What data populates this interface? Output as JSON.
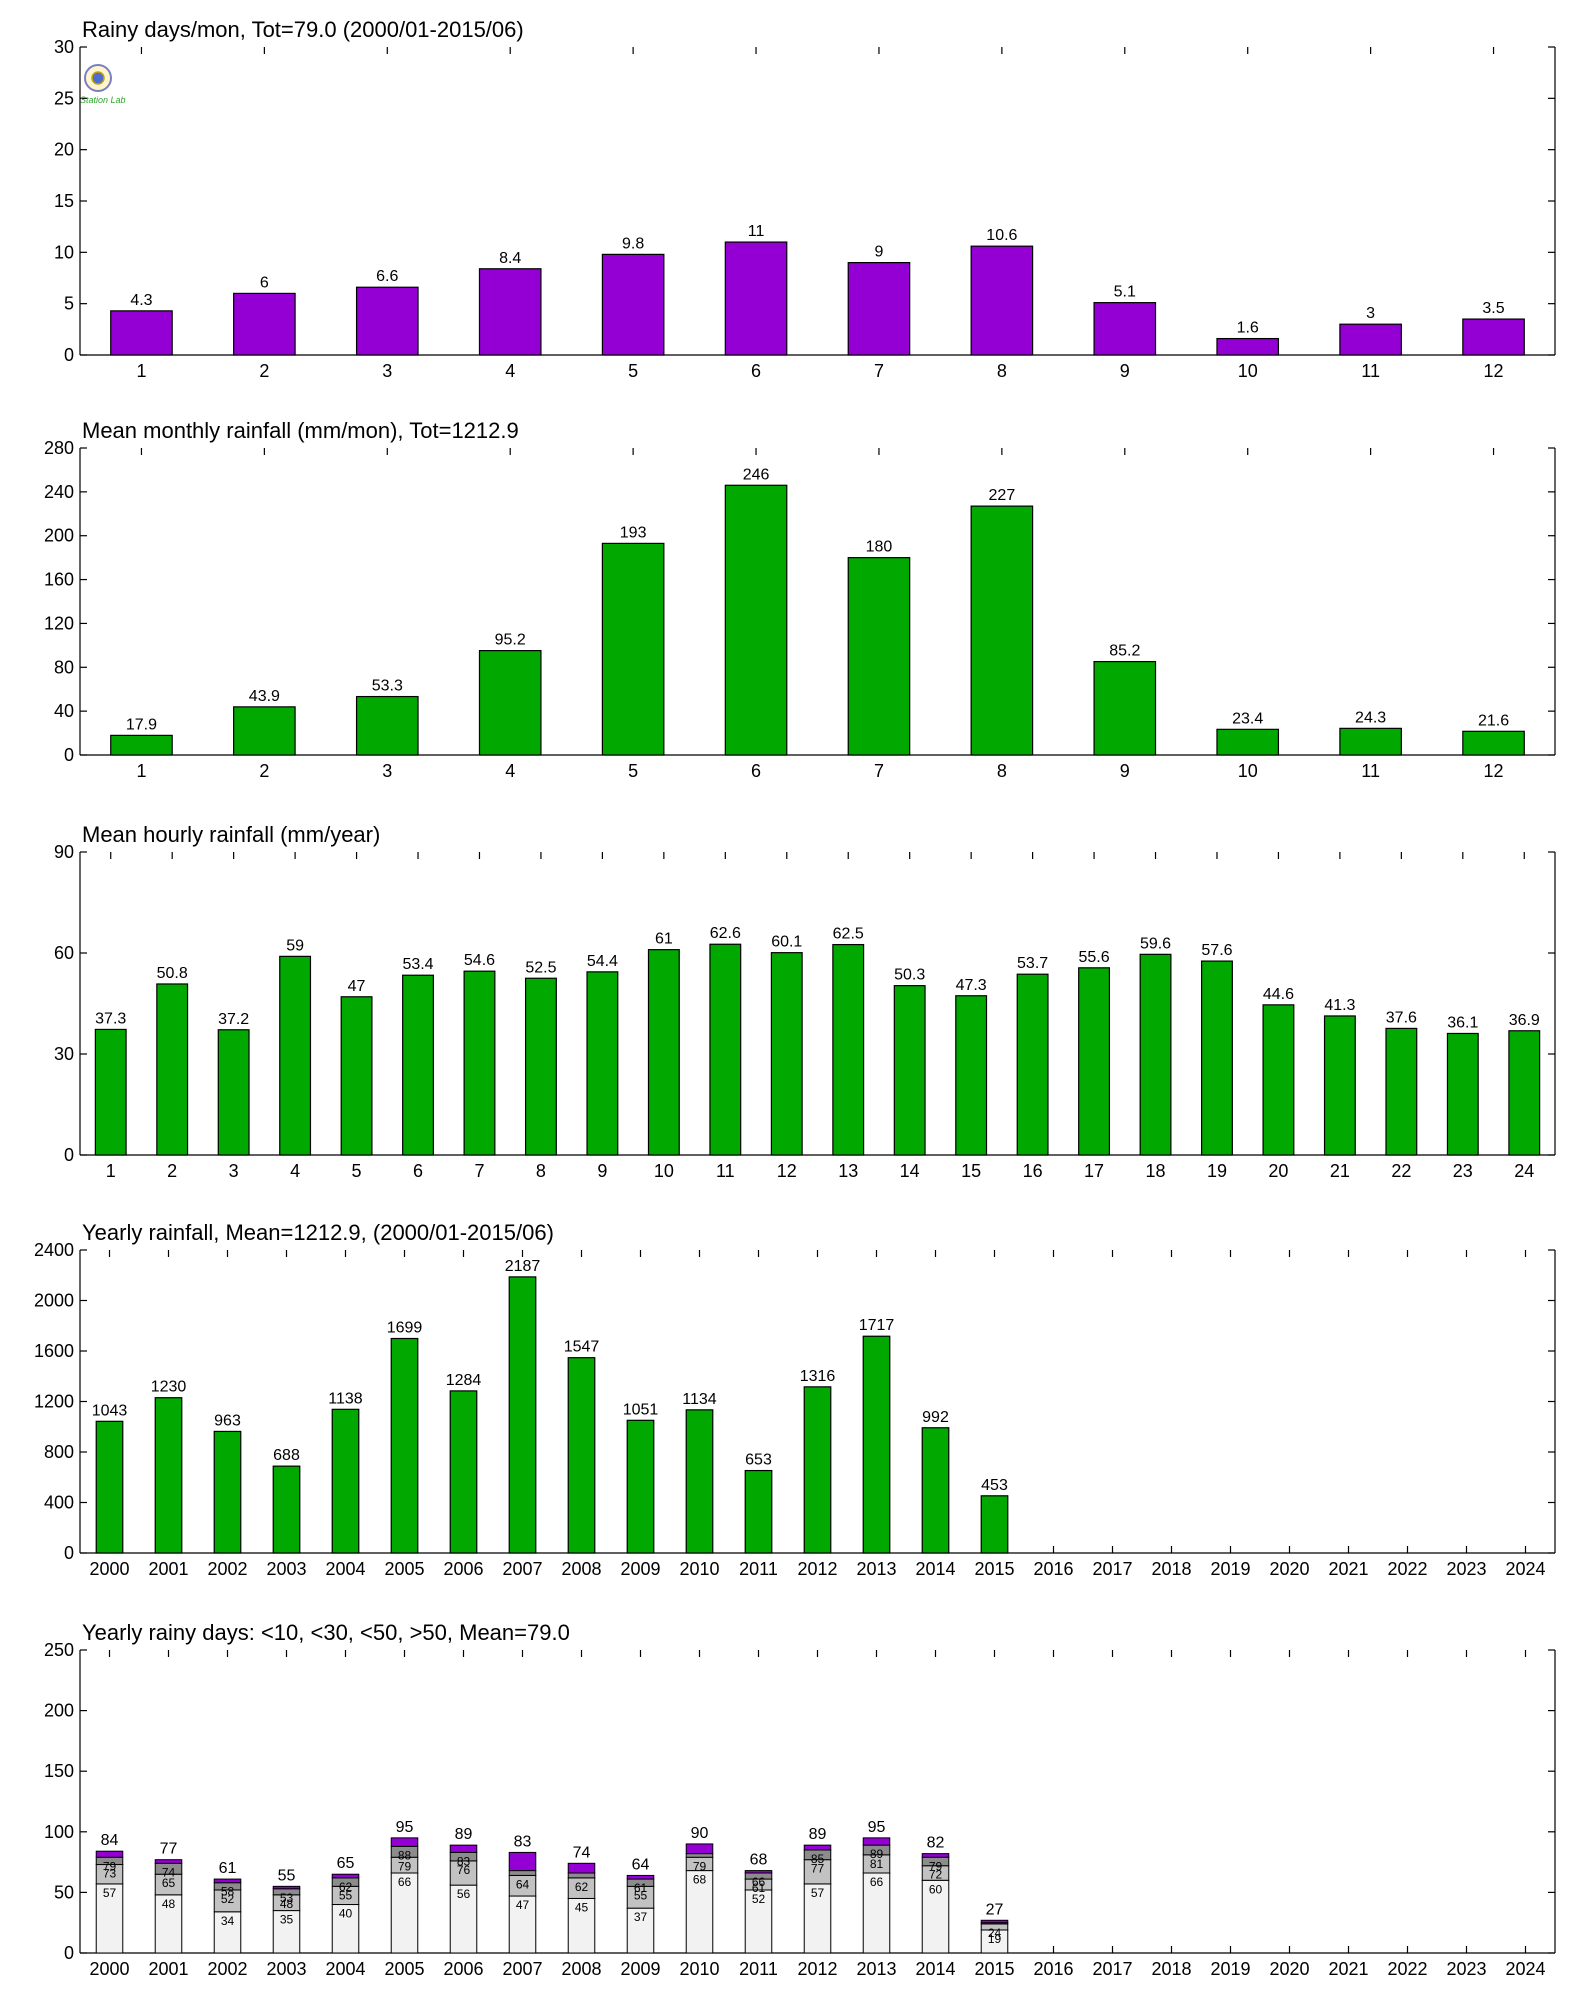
{
  "colors": {
    "purple": "#9400d3",
    "green": "#00a800",
    "stack_lt10": "#f2f2f2",
    "stack_lt30": "#c2c2c2",
    "stack_lt50": "#8c8c8c",
    "stack_gt50": "#9400d3"
  },
  "logo": {
    "icon": "station-logo-icon",
    "text": "Station Lab"
  },
  "chart_data": [
    {
      "type": "bar",
      "title": "Rainy days/mon, Tot=79.0 (2000/01-2015/06)",
      "color": "purple",
      "categories": [
        "1",
        "2",
        "3",
        "4",
        "5",
        "6",
        "7",
        "8",
        "9",
        "10",
        "11",
        "12"
      ],
      "values": [
        4.3,
        6,
        6.6,
        8.4,
        9.8,
        11,
        9,
        10.6,
        5.1,
        1.6,
        3,
        3.5
      ],
      "labels": [
        "4.3",
        "6",
        "6.6",
        "8.4",
        "9.8",
        "11",
        "9",
        "10.6",
        "5.1",
        "1.6",
        "3",
        "3.5"
      ],
      "ylim": [
        0,
        30
      ],
      "yticks": [
        0,
        5,
        10,
        15,
        20,
        25,
        30
      ],
      "grid": false
    },
    {
      "type": "bar",
      "title": "Mean monthly rainfall (mm/mon), Tot=1212.9",
      "color": "green",
      "categories": [
        "1",
        "2",
        "3",
        "4",
        "5",
        "6",
        "7",
        "8",
        "9",
        "10",
        "11",
        "12"
      ],
      "values": [
        17.9,
        43.9,
        53.3,
        95.2,
        193,
        246,
        180,
        227,
        85.2,
        23.4,
        24.3,
        21.6
      ],
      "labels": [
        "17.9",
        "43.9",
        "53.3",
        "95.2",
        "193",
        "246",
        "180",
        "227",
        "85.2",
        "23.4",
        "24.3",
        "21.6"
      ],
      "ylim": [
        0,
        280
      ],
      "yticks": [
        0,
        40,
        80,
        120,
        160,
        200,
        240,
        280
      ],
      "grid": false
    },
    {
      "type": "bar",
      "title": "Mean hourly rainfall (mm/year)",
      "color": "green",
      "categories": [
        "1",
        "2",
        "3",
        "4",
        "5",
        "6",
        "7",
        "8",
        "9",
        "10",
        "11",
        "12",
        "13",
        "14",
        "15",
        "16",
        "17",
        "18",
        "19",
        "20",
        "21",
        "22",
        "23",
        "24"
      ],
      "values": [
        37.3,
        50.8,
        37.2,
        59,
        47,
        53.4,
        54.6,
        52.5,
        54.4,
        61,
        62.6,
        60.1,
        62.5,
        50.3,
        47.3,
        53.7,
        55.6,
        59.6,
        57.6,
        44.6,
        41.3,
        37.6,
        36.1,
        36.9
      ],
      "labels": [
        "37.3",
        "50.8",
        "37.2",
        "59",
        "47",
        "53.4",
        "54.6",
        "52.5",
        "54.4",
        "61",
        "62.6",
        "60.1",
        "62.5",
        "50.3",
        "47.3",
        "53.7",
        "55.6",
        "59.6",
        "57.6",
        "44.6",
        "41.3",
        "37.6",
        "36.1",
        "36.9"
      ],
      "ylim": [
        0,
        90
      ],
      "yticks": [
        0,
        30,
        60,
        90
      ],
      "grid": false
    },
    {
      "type": "bar",
      "title": "Yearly rainfall, Mean=1212.9, (2000/01-2015/06)",
      "color": "green",
      "categories": [
        "2000",
        "2001",
        "2002",
        "2003",
        "2004",
        "2005",
        "2006",
        "2007",
        "2008",
        "2009",
        "2010",
        "2011",
        "2012",
        "2013",
        "2014",
        "2015",
        "2016",
        "2017",
        "2018",
        "2019",
        "2020",
        "2021",
        "2022",
        "2023",
        "2024"
      ],
      "values": [
        1043,
        1230,
        963,
        688,
        1138,
        1699,
        1284,
        2187,
        1547,
        1051,
        1134,
        653,
        1316,
        1717,
        992,
        453,
        null,
        null,
        null,
        null,
        null,
        null,
        null,
        null,
        null
      ],
      "labels": [
        "1043",
        "1230",
        "963",
        "688",
        "1138",
        "1699",
        "1284",
        "2187",
        "1547",
        "1051",
        "1134",
        "653",
        "1316",
        "1717",
        "992",
        "453",
        "",
        "",
        "",
        "",
        "",
        "",
        "",
        "",
        ""
      ],
      "ylim": [
        0,
        2400
      ],
      "yticks": [
        0,
        400,
        800,
        1200,
        1600,
        2000,
        2400
      ],
      "grid": false
    },
    {
      "type": "bar",
      "stacked": true,
      "title": "Yearly rainy days: <10, <30, <50, >50, Mean=79.0",
      "categories": [
        "2000",
        "2001",
        "2002",
        "2003",
        "2004",
        "2005",
        "2006",
        "2007",
        "2008",
        "2009",
        "2010",
        "2011",
        "2012",
        "2013",
        "2014",
        "2015",
        "2016",
        "2017",
        "2018",
        "2019",
        "2020",
        "2021",
        "2022",
        "2023",
        "2024"
      ],
      "cumulative": [
        [
          57,
          73,
          79,
          84
        ],
        [
          48,
          65,
          74,
          77
        ],
        [
          34,
          52,
          58,
          61
        ],
        [
          35,
          48,
          53,
          55
        ],
        [
          40,
          55,
          62,
          65
        ],
        [
          66,
          79,
          88,
          95
        ],
        [
          56,
          76,
          83,
          89
        ],
        [
          47,
          64,
          68,
          83
        ],
        [
          45,
          62,
          66,
          74
        ],
        [
          37,
          55,
          61,
          64
        ],
        [
          68,
          79,
          82,
          90
        ],
        [
          52,
          61,
          66,
          68
        ],
        [
          57,
          77,
          85,
          89
        ],
        [
          66,
          81,
          89,
          95
        ],
        [
          60,
          72,
          79,
          82
        ],
        [
          19,
          24,
          25,
          27
        ],
        null,
        null,
        null,
        null,
        null,
        null,
        null,
        null,
        null
      ],
      "segment_labels": [
        [
          "57",
          "73",
          "79"
        ],
        [
          "48",
          "65",
          "74"
        ],
        [
          "34",
          "52",
          "58"
        ],
        [
          "35",
          "48",
          "53"
        ],
        [
          "40",
          "55",
          "62"
        ],
        [
          "66",
          "79",
          "88"
        ],
        [
          "56",
          "76",
          "83"
        ],
        [
          "47",
          "64",
          ""
        ],
        [
          "45",
          "62",
          ""
        ],
        [
          "37",
          "55",
          "61"
        ],
        [
          "68",
          "79",
          ""
        ],
        [
          "52",
          "61",
          "66"
        ],
        [
          "57",
          "77",
          "85"
        ],
        [
          "66",
          "81",
          "89"
        ],
        [
          "60",
          "72",
          "79"
        ],
        [
          "19",
          "24",
          ""
        ],
        null,
        null,
        null,
        null,
        null,
        null,
        null,
        null,
        null
      ],
      "total_labels": [
        "84",
        "77",
        "61",
        "55",
        "65",
        "95",
        "89",
        "83",
        "74",
        "64",
        "90",
        "68",
        "89",
        "95",
        "82",
        "27",
        "",
        "",
        "",
        "",
        "",
        "",
        "",
        "",
        ""
      ],
      "ylim": [
        0,
        250
      ],
      "yticks": [
        0,
        50,
        100,
        150,
        200,
        250
      ],
      "grid": false
    }
  ]
}
